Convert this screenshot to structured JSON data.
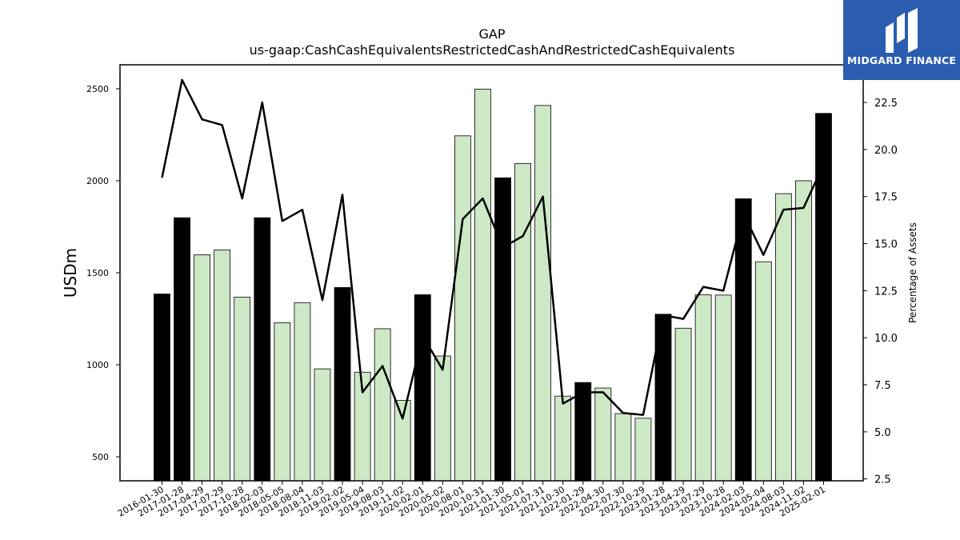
{
  "chart_data": {
    "type": "bar",
    "title": "GAP",
    "subtitle": "us-gaap:CashCashEquivalentsRestrictedCashAndRestrictedCashEquivalents",
    "ylabel": "USDm",
    "y2label": "Percentage of Assets",
    "ylim": [
      370,
      2630
    ],
    "y2lim": [
      2.4,
      24.5
    ],
    "yticks": [
      500,
      1000,
      1500,
      2000,
      2500
    ],
    "y2ticks": [
      "2.5",
      "5.0",
      "7.5",
      "10.0",
      "12.5",
      "15.0",
      "17.5",
      "20.0",
      "22.5"
    ],
    "categories": [
      "2016-01-30",
      "2017-01-28",
      "2017-04-29",
      "2017-07-29",
      "2017-10-28",
      "2018-02-03",
      "2018-05-05",
      "2018-08-04",
      "2018-11-03",
      "2019-02-02",
      "2019-05-04",
      "2019-08-03",
      "2019-11-02",
      "2020-02-01",
      "2020-05-02",
      "2020-08-01",
      "2020-10-31",
      "2021-01-30",
      "2021-05-01",
      "2021-07-31",
      "2021-10-30",
      "2022-01-29",
      "2022-04-30",
      "2022-07-30",
      "2022-10-29",
      "2023-01-28",
      "2023-04-29",
      "2023-07-29",
      "2023-10-28",
      "2024-02-03",
      "2024-05-04",
      "2024-08-03",
      "2024-11-02",
      "2025-02-01"
    ],
    "series": [
      {
        "type": "bar",
        "axis": "left",
        "values": [
          1385,
          1799,
          1598,
          1624,
          1368,
          1799,
          1229,
          1338,
          978,
          1420,
          960,
          1196,
          807,
          1381,
          1048,
          2244,
          2498,
          2016,
          2094,
          2409,
          830,
          904,
          874,
          735,
          710,
          1275,
          1199,
          1380,
          1379,
          1902,
          1560,
          1930,
          2000,
          2366
        ],
        "highlight": [
          true,
          true,
          false,
          false,
          false,
          true,
          false,
          false,
          false,
          true,
          false,
          false,
          false,
          true,
          false,
          false,
          false,
          true,
          false,
          false,
          false,
          true,
          false,
          false,
          false,
          true,
          false,
          false,
          false,
          true,
          false,
          false,
          false,
          true
        ]
      },
      {
        "type": "line",
        "axis": "right",
        "values": [
          18.5,
          23.7,
          21.6,
          21.3,
          17.4,
          22.5,
          16.2,
          16.8,
          12.0,
          17.6,
          7.1,
          8.5,
          5.7,
          10.1,
          8.3,
          16.3,
          17.4,
          14.8,
          15.4,
          17.5,
          6.5,
          7.1,
          7.1,
          6.0,
          5.9,
          11.2,
          11.0,
          12.7,
          12.5,
          16.6,
          14.4,
          16.8,
          16.9,
          19.2
        ]
      }
    ],
    "colors": {
      "bar_highlight": "#000000",
      "bar": "#cde8c5",
      "line": "#000000"
    },
    "grid": false
  },
  "logo": {
    "text": "MIDGARD FINANCE",
    "background": "#2a5db0"
  }
}
